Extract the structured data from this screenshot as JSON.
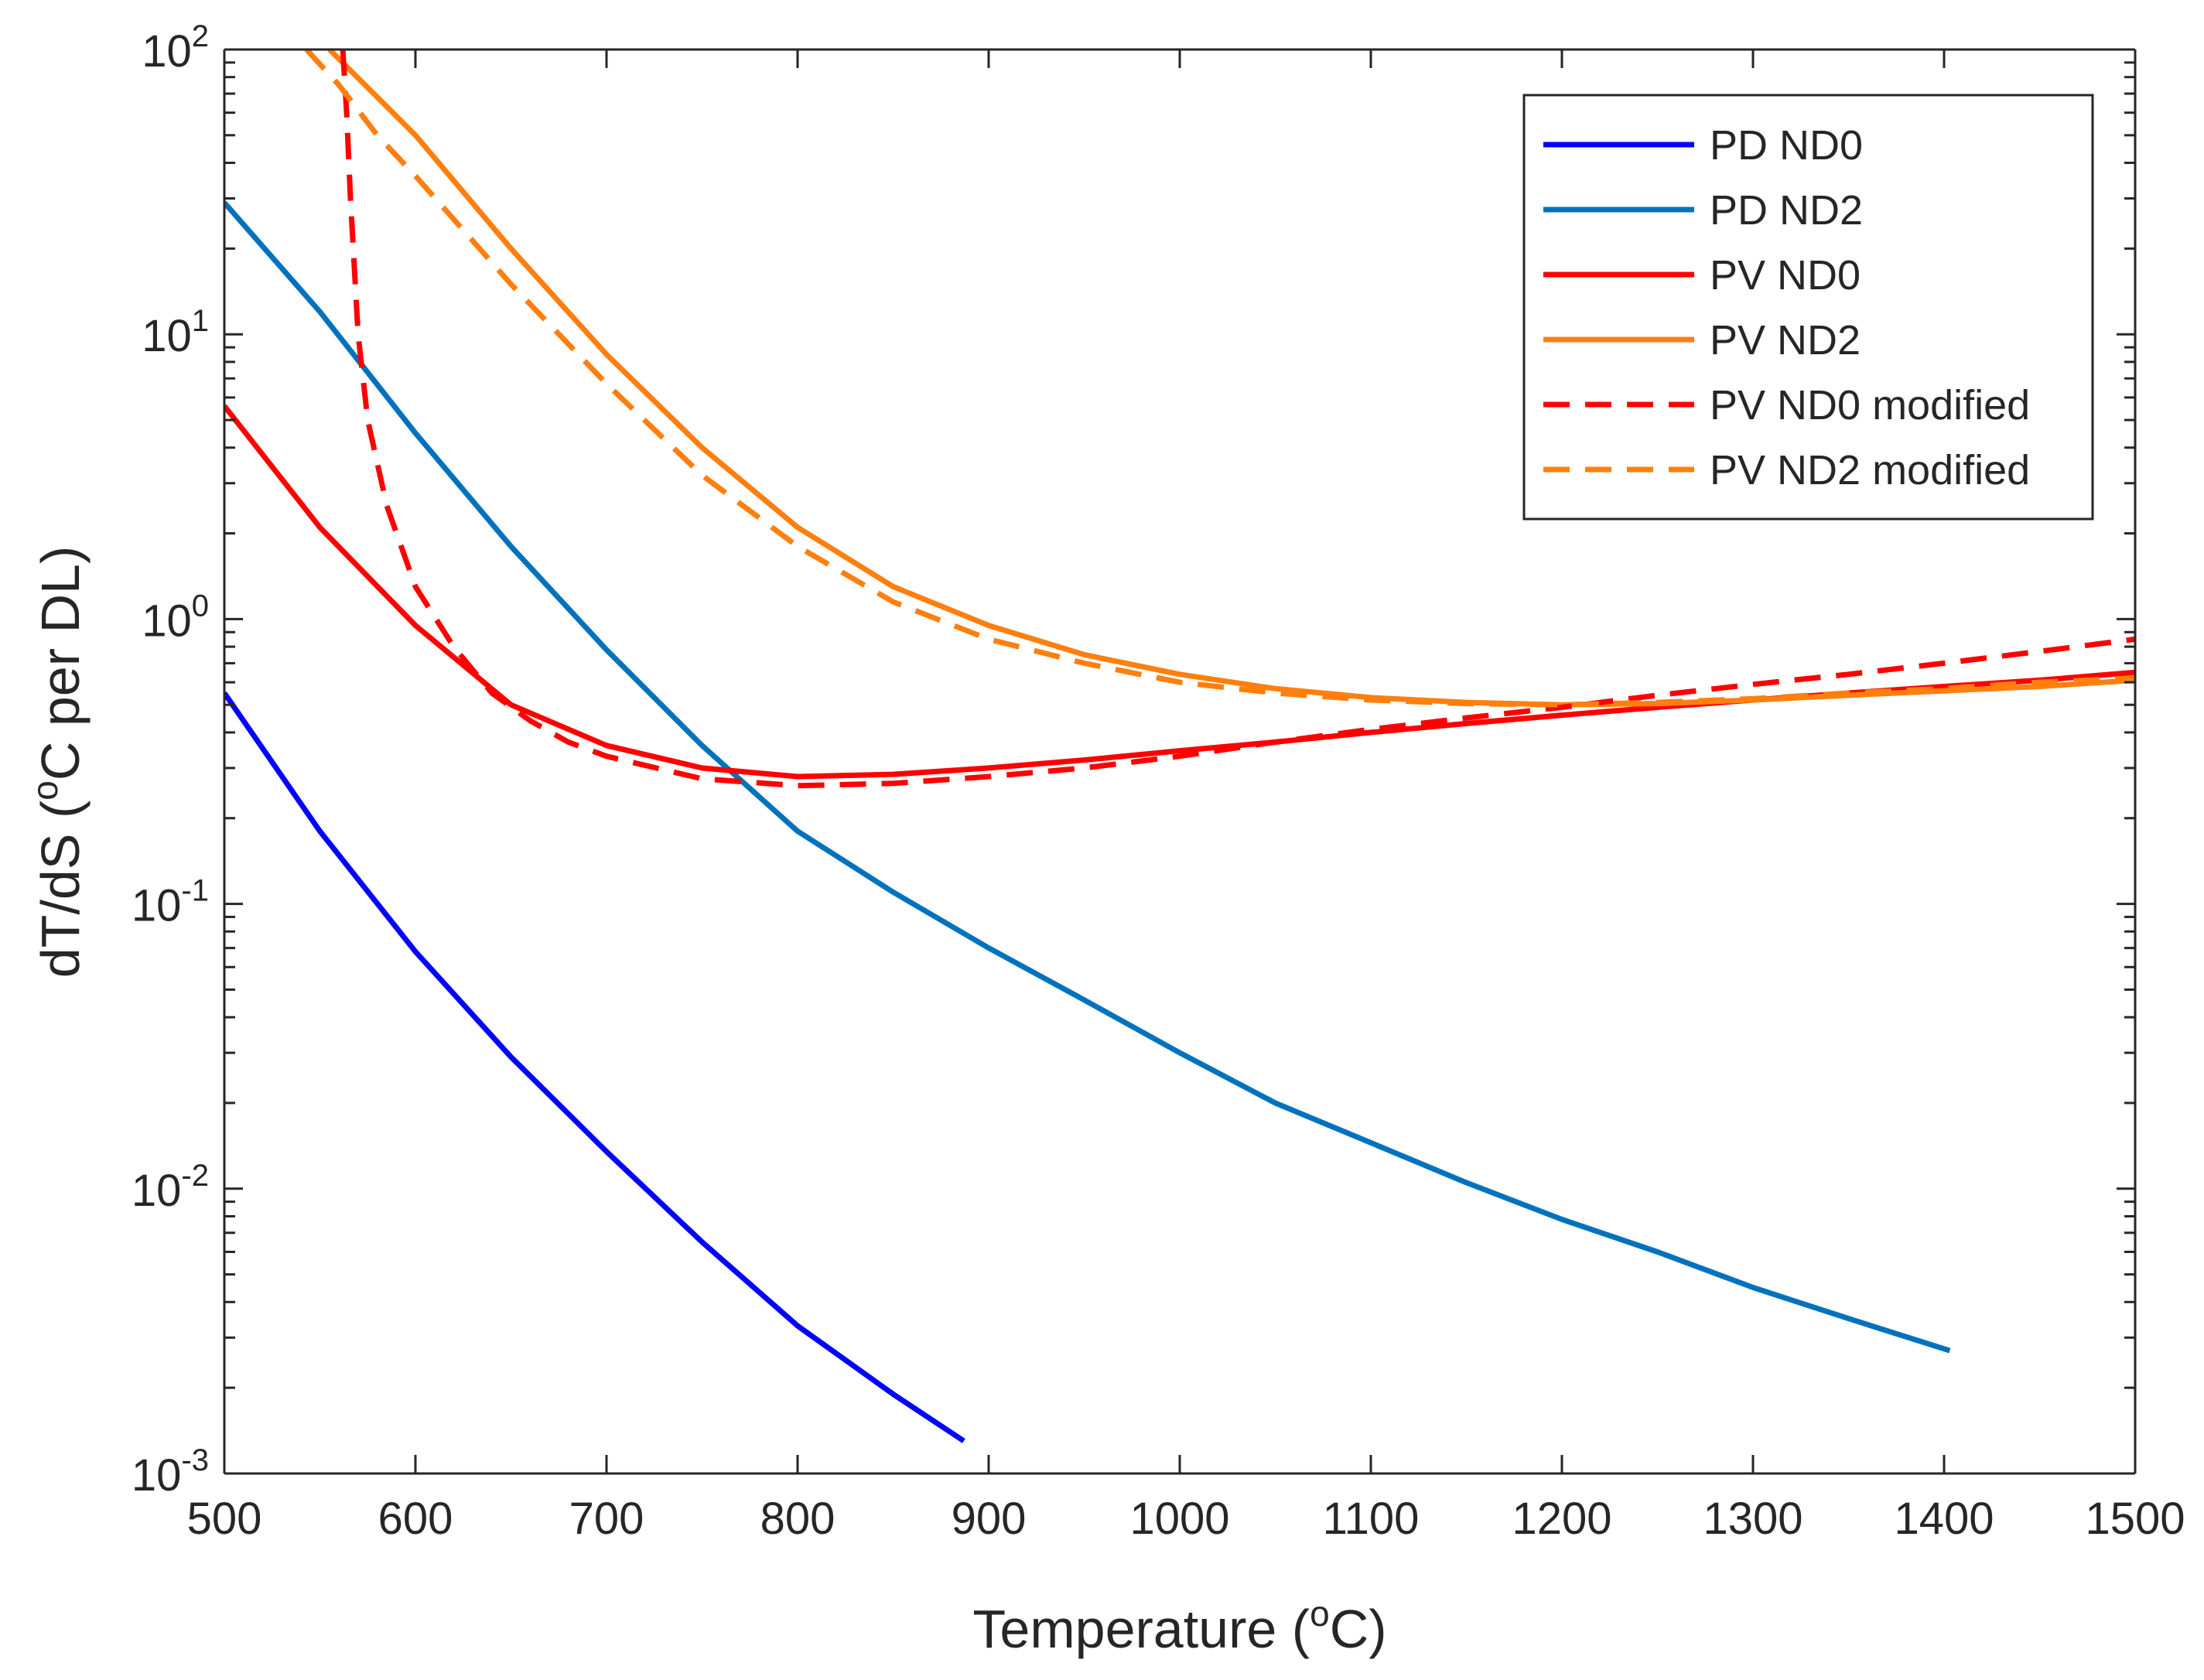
{
  "chart_data": {
    "type": "line",
    "title": "",
    "xlabel": {
      "text": "Temperature (",
      "sup": "o",
      "suffix": "C)"
    },
    "ylabel": {
      "text": "dT/dS (",
      "sup": "o",
      "suffix": "C per DL)"
    },
    "xlim": [
      500,
      1500
    ],
    "ylim": [
      0.001,
      100
    ],
    "yscale": "log",
    "grid": false,
    "legend_position": "top-right",
    "x_ticks": [
      500,
      600,
      700,
      800,
      900,
      1000,
      1100,
      1200,
      1300,
      1400,
      1500
    ],
    "y_ticks": [
      {
        "value": 0.001,
        "base": "10",
        "exp": "-3"
      },
      {
        "value": 0.01,
        "base": "10",
        "exp": "-2"
      },
      {
        "value": 0.1,
        "base": "10",
        "exp": "-1"
      },
      {
        "value": 1,
        "base": "10",
        "exp": "0"
      },
      {
        "value": 10,
        "base": "10",
        "exp": "1"
      },
      {
        "value": 100,
        "base": "10",
        "exp": "2"
      }
    ],
    "series": [
      {
        "name": "PD ND0",
        "color": "#0000ff",
        "style": "solid",
        "x": [
          500,
          550,
          600,
          650,
          700,
          750,
          800,
          850,
          887
        ],
        "y": [
          0.55,
          0.18,
          0.068,
          0.029,
          0.0135,
          0.0065,
          0.0033,
          0.0019,
          0.0013
        ]
      },
      {
        "name": "PD ND2",
        "color": "#0072bd",
        "style": "solid",
        "x": [
          500,
          550,
          600,
          650,
          700,
          750,
          800,
          850,
          900,
          950,
          1000,
          1050,
          1100,
          1150,
          1200,
          1250,
          1300,
          1350,
          1403
        ],
        "y": [
          29,
          12,
          4.5,
          1.8,
          0.78,
          0.36,
          0.18,
          0.11,
          0.07,
          0.046,
          0.03,
          0.02,
          0.0145,
          0.0105,
          0.0078,
          0.006,
          0.0045,
          0.0035,
          0.0027
        ]
      },
      {
        "name": "PV ND0",
        "color": "#ff0000",
        "style": "solid",
        "x": [
          500,
          550,
          600,
          650,
          700,
          750,
          800,
          850,
          900,
          950,
          1000,
          1050,
          1100,
          1150,
          1200,
          1250,
          1300,
          1350,
          1400,
          1450,
          1500
        ],
        "y": [
          5.6,
          2.1,
          0.95,
          0.5,
          0.36,
          0.3,
          0.28,
          0.285,
          0.3,
          0.32,
          0.345,
          0.37,
          0.4,
          0.43,
          0.46,
          0.49,
          0.52,
          0.55,
          0.58,
          0.61,
          0.65
        ]
      },
      {
        "name": "PV ND2",
        "color": "#ff7f0e",
        "style": "solid",
        "x": [
          555,
          600,
          650,
          700,
          750,
          800,
          850,
          900,
          950,
          1000,
          1050,
          1100,
          1150,
          1200,
          1250,
          1300,
          1350,
          1400,
          1450,
          1500
        ],
        "y": [
          100,
          50,
          20,
          8.5,
          4.0,
          2.1,
          1.3,
          0.95,
          0.75,
          0.64,
          0.57,
          0.53,
          0.51,
          0.5,
          0.505,
          0.52,
          0.54,
          0.56,
          0.58,
          0.61
        ]
      },
      {
        "name": "PV ND0 modified",
        "color": "#ff0000",
        "style": "dashed",
        "x": [
          562,
          564,
          566,
          570,
          575,
          585,
          600,
          620,
          640,
          660,
          680,
          700,
          750,
          800,
          850,
          900,
          950,
          1000,
          1050,
          1100,
          1150,
          1200,
          1250,
          1300,
          1350,
          1400,
          1450,
          1500
        ],
        "y": [
          100,
          60,
          30,
          10,
          5.0,
          2.5,
          1.3,
          0.8,
          0.55,
          0.44,
          0.37,
          0.33,
          0.275,
          0.26,
          0.265,
          0.28,
          0.3,
          0.33,
          0.37,
          0.41,
          0.45,
          0.49,
          0.54,
          0.59,
          0.64,
          0.7,
          0.77,
          0.85
        ]
      },
      {
        "name": "PV ND2 modified",
        "color": "#ff7f0e",
        "style": "dashed",
        "x": [
          543,
          560,
          580,
          600,
          650,
          700,
          750,
          800,
          850,
          900,
          950,
          1000,
          1050,
          1100,
          1150,
          1200,
          1250,
          1300,
          1350,
          1400,
          1450,
          1500
        ],
        "y": [
          100,
          75,
          50,
          36,
          15,
          6.7,
          3.2,
          1.8,
          1.15,
          0.85,
          0.7,
          0.6,
          0.55,
          0.52,
          0.505,
          0.5,
          0.51,
          0.525,
          0.55,
          0.57,
          0.6,
          0.62
        ]
      }
    ]
  }
}
